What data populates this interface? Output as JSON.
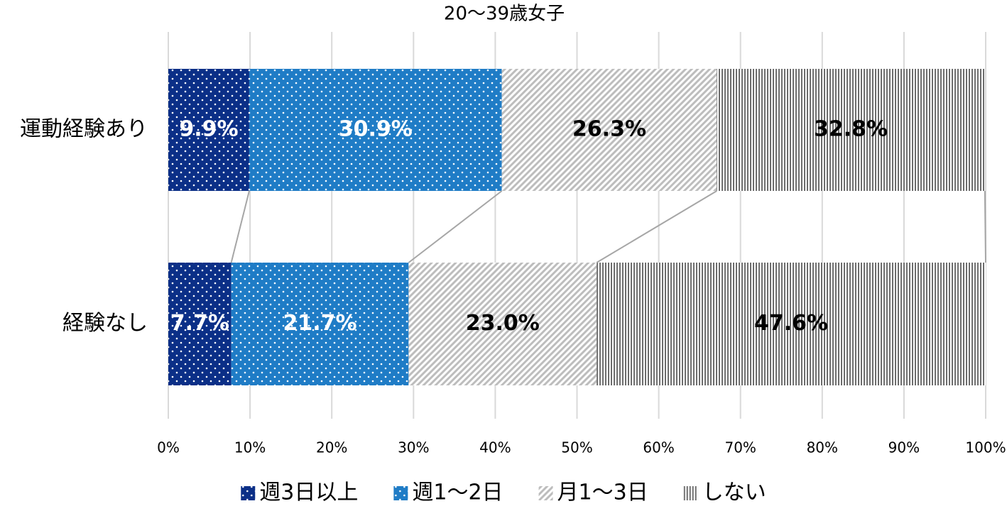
{
  "chart_data": {
    "type": "stacked-bar-horizontal",
    "title": "20～39歳女子",
    "categories": [
      "運動経験あり",
      "経験なし"
    ],
    "series": [
      {
        "name": "週3日以上",
        "color": "#0b2f87",
        "pattern": "dots",
        "label_color": "#ffffff",
        "values": [
          9.9,
          7.7
        ],
        "value_labels": [
          "9.9%",
          "7.7%"
        ]
      },
      {
        "name": "週1～2日",
        "color": "#1f7cc6",
        "pattern": "dots",
        "label_color": "#ffffff",
        "values": [
          30.9,
          21.7
        ],
        "value_labels": [
          "30.9%",
          "21.7%"
        ]
      },
      {
        "name": "月1～3日",
        "color": "#bdbdbd",
        "pattern": "diagonal",
        "label_color": "#000000",
        "values": [
          26.3,
          23.0
        ],
        "value_labels": [
          "26.3%",
          "23.0%"
        ]
      },
      {
        "name": "しない",
        "color": "#6e6e6e",
        "pattern": "vertical",
        "label_color": "#000000",
        "values": [
          32.8,
          47.6
        ],
        "value_labels": [
          "32.8%",
          "47.6%"
        ]
      }
    ],
    "xlim": [
      0,
      100
    ],
    "xticks": [
      {
        "value": 0,
        "label": "0%"
      },
      {
        "value": 10,
        "label": "10%"
      },
      {
        "value": 20,
        "label": "20%"
      },
      {
        "value": 30,
        "label": "30%"
      },
      {
        "value": 40,
        "label": "40%"
      },
      {
        "value": 50,
        "label": "50%"
      },
      {
        "value": 60,
        "label": "60%"
      },
      {
        "value": 70,
        "label": "70%"
      },
      {
        "value": 80,
        "label": "80%"
      },
      {
        "value": 90,
        "label": "90%"
      },
      {
        "value": 100,
        "label": "100%"
      }
    ],
    "grid": true,
    "legend": "bottom"
  }
}
